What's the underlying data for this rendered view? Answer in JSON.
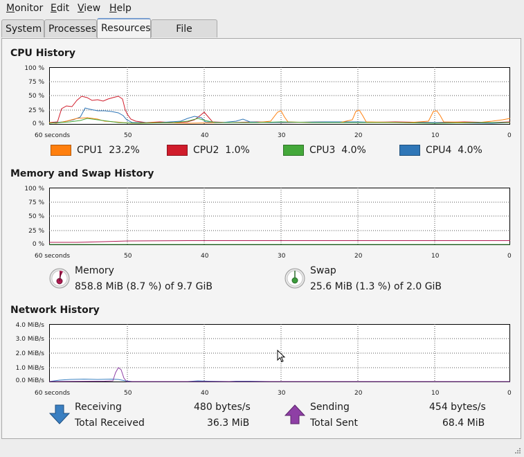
{
  "menubar": {
    "items": [
      {
        "label": "Monitor",
        "mnemonic": "M",
        "rest": "onitor"
      },
      {
        "label": "Edit",
        "mnemonic": "E",
        "rest": "dit"
      },
      {
        "label": "View",
        "mnemonic": "V",
        "rest": "iew"
      },
      {
        "label": "Help",
        "mnemonic": "H",
        "rest": "elp"
      }
    ]
  },
  "tabs": [
    {
      "label": "System",
      "active": false
    },
    {
      "label": "Processes",
      "active": false
    },
    {
      "label": "Resources",
      "active": true
    },
    {
      "label": "File Systems",
      "active": false
    }
  ],
  "cpu": {
    "title": "CPU History",
    "y_ticks": [
      "100 %",
      "75 %",
      "50 %",
      "25 %",
      "0 %"
    ],
    "x_ticks": [
      "60 seconds",
      "50",
      "40",
      "30",
      "20",
      "10",
      "0"
    ],
    "legend": [
      {
        "name": "CPU1",
        "value": "23.2%",
        "color": "#ff7f0e"
      },
      {
        "name": "CPU2",
        "value": "1.0%",
        "color": "#d01c2b"
      },
      {
        "name": "CPU3",
        "value": "4.0%",
        "color": "#44a83a"
      },
      {
        "name": "CPU4",
        "value": "4.0%",
        "color": "#2f76b7"
      }
    ]
  },
  "memory": {
    "title": "Memory and Swap History",
    "y_ticks": [
      "100 %",
      "75 %",
      "50 %",
      "25 %",
      "0 %"
    ],
    "x_ticks": [
      "60 seconds",
      "50",
      "40",
      "30",
      "20",
      "10",
      "0"
    ],
    "memory_label": "Memory",
    "memory_value": "858.8 MiB (8.7 %) of 9.7 GiB",
    "memory_color": "#b01c52",
    "swap_label": "Swap",
    "swap_value": "25.6 MiB (1.3 %) of 2.0 GiB",
    "swap_color": "#3c9c3c"
  },
  "network": {
    "title": "Network History",
    "y_ticks": [
      "4.0 MiB/s",
      "3.0 MiB/s",
      "2.0 MiB/s",
      "1.0 MiB/s",
      "0.0 MiB/s"
    ],
    "x_ticks": [
      "60 seconds",
      "50",
      "40",
      "30",
      "20",
      "10",
      "0"
    ],
    "receiving_label": "Receiving",
    "receiving_value": "480 bytes/s",
    "total_received_label": "Total Received",
    "total_received_value": "36.3 MiB",
    "sending_label": "Sending",
    "sending_value": "454 bytes/s",
    "total_sent_label": "Total Sent",
    "total_sent_value": "68.4 MiB",
    "receiving_color": "#3a7fc1",
    "sending_color": "#8e3fa5"
  }
}
